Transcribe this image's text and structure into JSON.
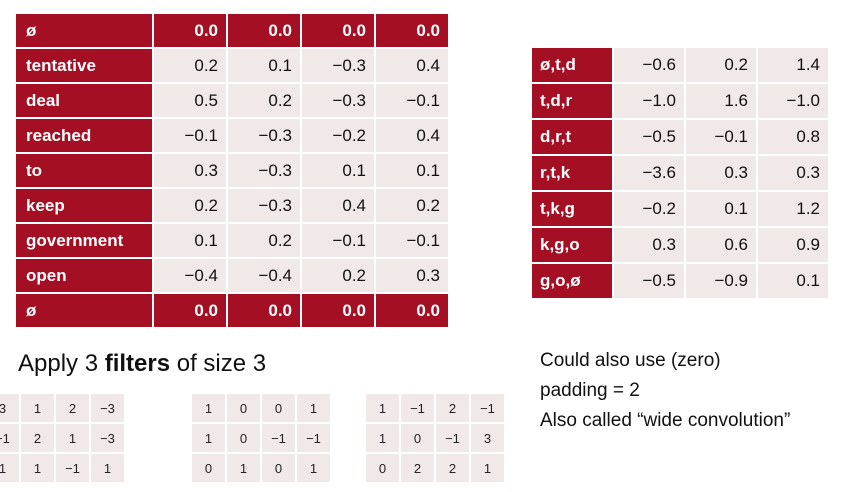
{
  "embedding_table": {
    "rows": [
      {
        "word": "ø",
        "values": [
          "0.0",
          "0.0",
          "0.0",
          "0.0"
        ],
        "padding": true
      },
      {
        "word": "tentative",
        "values": [
          "0.2",
          "0.1",
          "−0.3",
          "0.4"
        ],
        "padding": false
      },
      {
        "word": "deal",
        "values": [
          "0.5",
          "0.2",
          "−0.3",
          "−0.1"
        ],
        "padding": false
      },
      {
        "word": "reached",
        "values": [
          "−0.1",
          "−0.3",
          "−0.2",
          "0.4"
        ],
        "padding": false
      },
      {
        "word": "to",
        "values": [
          "0.3",
          "−0.3",
          "0.1",
          "0.1"
        ],
        "padding": false
      },
      {
        "word": "keep",
        "values": [
          "0.2",
          "−0.3",
          "0.4",
          "0.2"
        ],
        "padding": false
      },
      {
        "word": "government",
        "values": [
          "0.1",
          "0.2",
          "−0.1",
          "−0.1"
        ],
        "padding": false
      },
      {
        "word": "open",
        "values": [
          "−0.4",
          "−0.4",
          "0.2",
          "0.3"
        ],
        "padding": false
      },
      {
        "word": "ø",
        "values": [
          "0.0",
          "0.0",
          "0.0",
          "0.0"
        ],
        "padding": true
      }
    ]
  },
  "result_table": {
    "rows": [
      {
        "label": "ø,t,d",
        "values": [
          "−0.6",
          "0.2",
          "1.4"
        ]
      },
      {
        "label": "t,d,r",
        "values": [
          "−1.0",
          "1.6",
          "−1.0"
        ]
      },
      {
        "label": "d,r,t",
        "values": [
          "−0.5",
          "−0.1",
          "0.8"
        ]
      },
      {
        "label": "r,t,k",
        "values": [
          "−3.6",
          "0.3",
          "0.3"
        ]
      },
      {
        "label": "t,k,g",
        "values": [
          "−0.2",
          "0.1",
          "1.2"
        ]
      },
      {
        "label": "k,g,o",
        "values": [
          "0.3",
          "0.6",
          "0.9"
        ]
      },
      {
        "label": "g,o,ø",
        "values": [
          "−0.5",
          "−0.9",
          "0.1"
        ]
      }
    ]
  },
  "apply_text": {
    "prefix": "Apply 3 ",
    "bold": "filters",
    "suffix": " of size 3"
  },
  "filters": [
    [
      [
        "3",
        "1",
        "2",
        "−3"
      ],
      [
        "−1",
        "2",
        "1",
        "−3"
      ],
      [
        "1",
        "1",
        "−1",
        "1"
      ]
    ],
    [
      [
        "1",
        "0",
        "0",
        "1"
      ],
      [
        "1",
        "0",
        "−1",
        "−1"
      ],
      [
        "0",
        "1",
        "0",
        "1"
      ]
    ],
    [
      [
        "1",
        "−1",
        "2",
        "−1"
      ],
      [
        "1",
        "0",
        "−1",
        "3"
      ],
      [
        "0",
        "2",
        "2",
        "1"
      ]
    ]
  ],
  "note_lines": [
    "Could also use (zero)",
    "padding = 2",
    "Also called “wide convolution”"
  ],
  "colors": {
    "accent": "#a50f24",
    "cell_bg": "#f1e9e8"
  }
}
